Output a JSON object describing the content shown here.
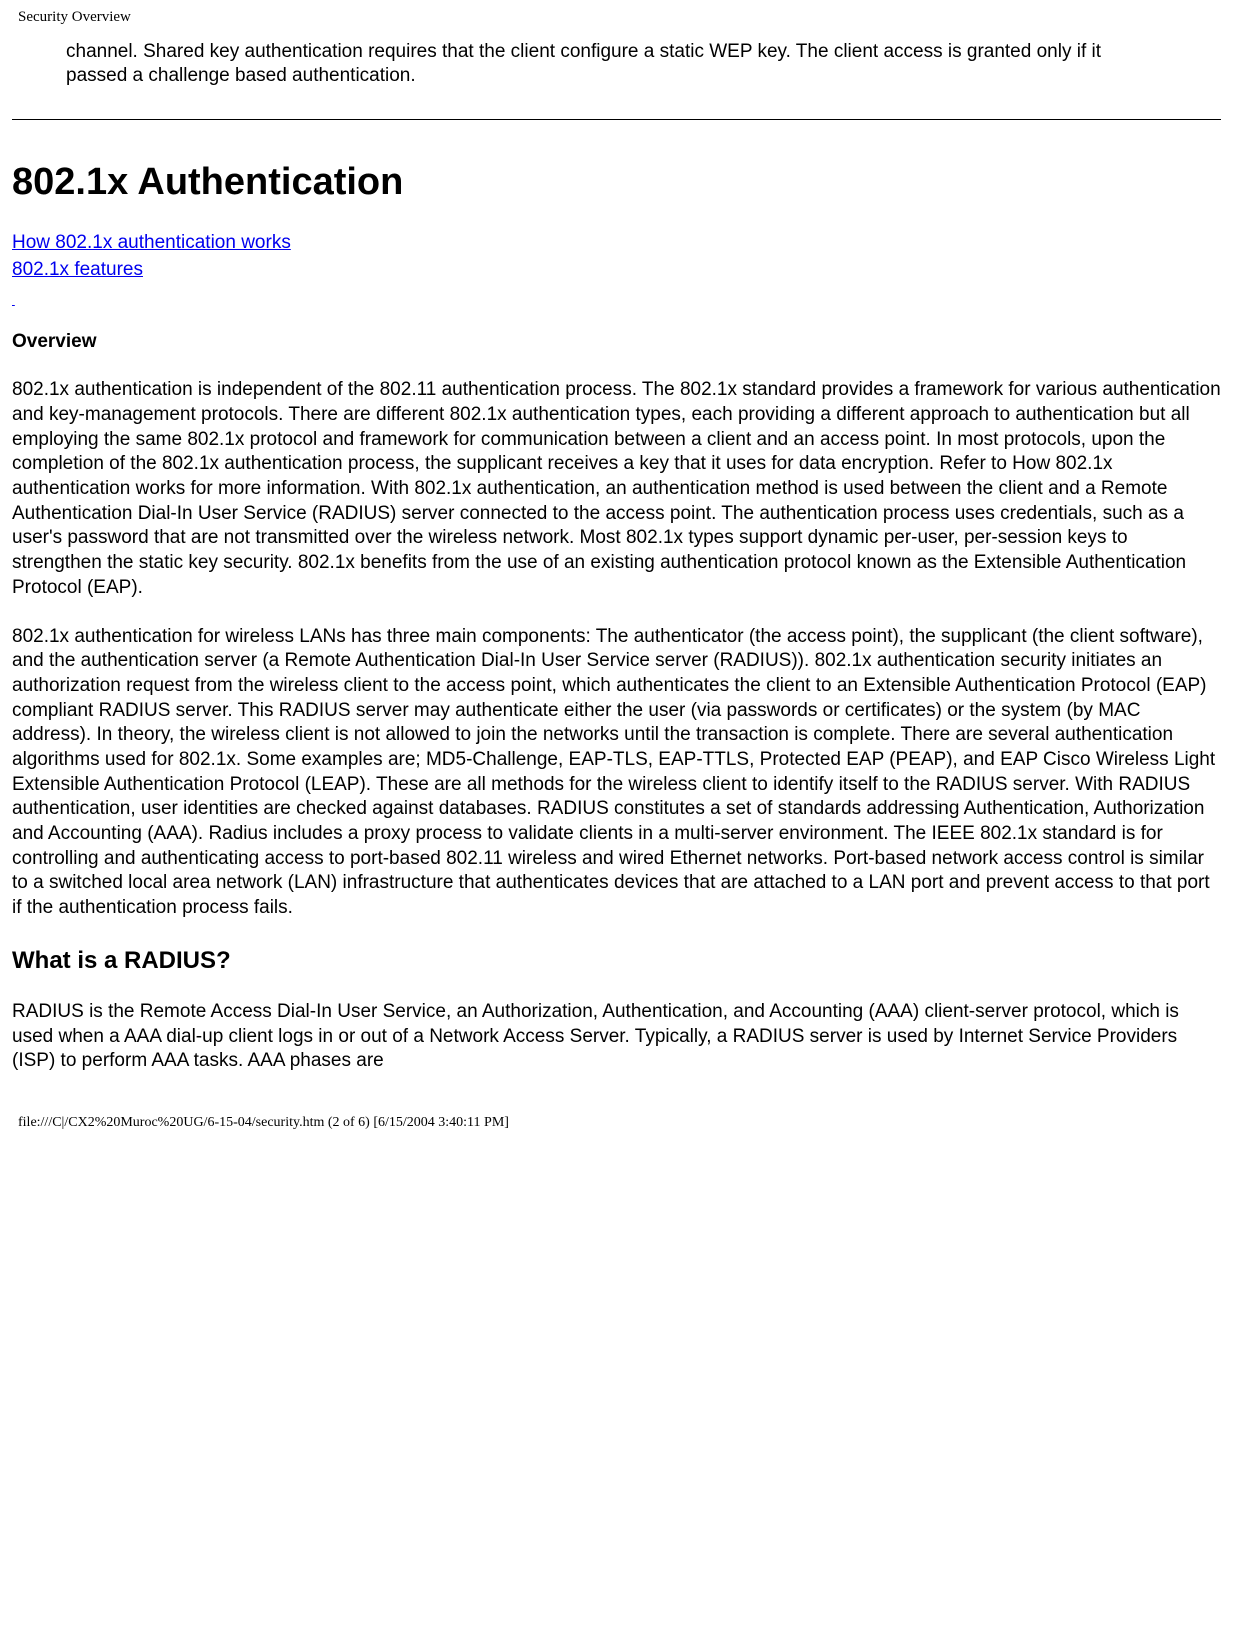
{
  "header": {
    "title": "Security Overview"
  },
  "intro": "channel. Shared key authentication requires that the client configure a static WEP key. The client access is granted only if it passed a challenge based authentication.",
  "heading1": "802.1x Authentication",
  "links": {
    "link1": "How 802.1x authentication works",
    "link2": "802.1x features"
  },
  "overview_label": "Overview",
  "para1": "802.1x authentication is independent of the 802.11 authentication process. The 802.1x standard provides a framework for various authentication and key-management protocols. There are different 802.1x authentication types, each providing a different approach to authentication but all employing the same 802.1x protocol and framework for communication between a client and an access point. In most protocols, upon the completion of the 802.1x authentication process, the supplicant receives a key that it uses for data encryption. Refer to How 802.1x authentication works for more information. With 802.1x authentication, an authentication method is used between the client and a Remote Authentication Dial-In User Service (RADIUS) server connected to the access point. The authentication process uses credentials, such as a user's password that are not transmitted over the wireless network. Most 802.1x types support dynamic per-user, per-session keys to strengthen the static key security. 802.1x benefits from the use of an existing authentication protocol known as the Extensible Authentication Protocol (EAP).",
  "para2": "802.1x authentication for wireless LANs has three main components: The authenticator (the access point), the supplicant (the client software), and the authentication server (a Remote Authentication Dial-In User Service server (RADIUS)). 802.1x authentication security initiates an authorization request from the wireless client to the access point, which authenticates the client to an Extensible Authentication Protocol (EAP) compliant RADIUS server. This RADIUS server may authenticate either the user (via passwords or certificates) or the system (by MAC address). In theory, the wireless client is not allowed to join the networks until the transaction is complete. There are several authentication algorithms used for 802.1x. Some examples are; MD5-Challenge, EAP-TLS, EAP-TTLS, Protected EAP (PEAP), and EAP Cisco Wireless Light Extensible Authentication Protocol (LEAP). These are all methods for the wireless client to identify itself to the RADIUS server. With RADIUS authentication, user identities are checked against databases. RADIUS constitutes a set of standards addressing Authentication, Authorization and Accounting (AAA). Radius includes a proxy process to validate clients in a multi-server environment. The IEEE 802.1x standard is for controlling and authenticating access to port-based 802.11 wireless and wired Ethernet networks. Port-based network access control is similar to a switched local area network (LAN) infrastructure that authenticates devices that are attached to a LAN port and prevent access to that port if the authentication process fails.",
  "heading2": "What is a RADIUS?",
  "para3": "RADIUS is the Remote Access Dial-In User Service, an Authorization, Authentication, and Accounting (AAA) client-server protocol, which is used when a AAA dial-up client logs in or out of a Network Access Server. Typically, a RADIUS server is used by Internet Service Providers (ISP) to perform AAA tasks. AAA phases are",
  "footer": "file:///C|/CX2%20Muroc%20UG/6-15-04/security.htm (2 of 6) [6/15/2004 3:40:11 PM]"
}
